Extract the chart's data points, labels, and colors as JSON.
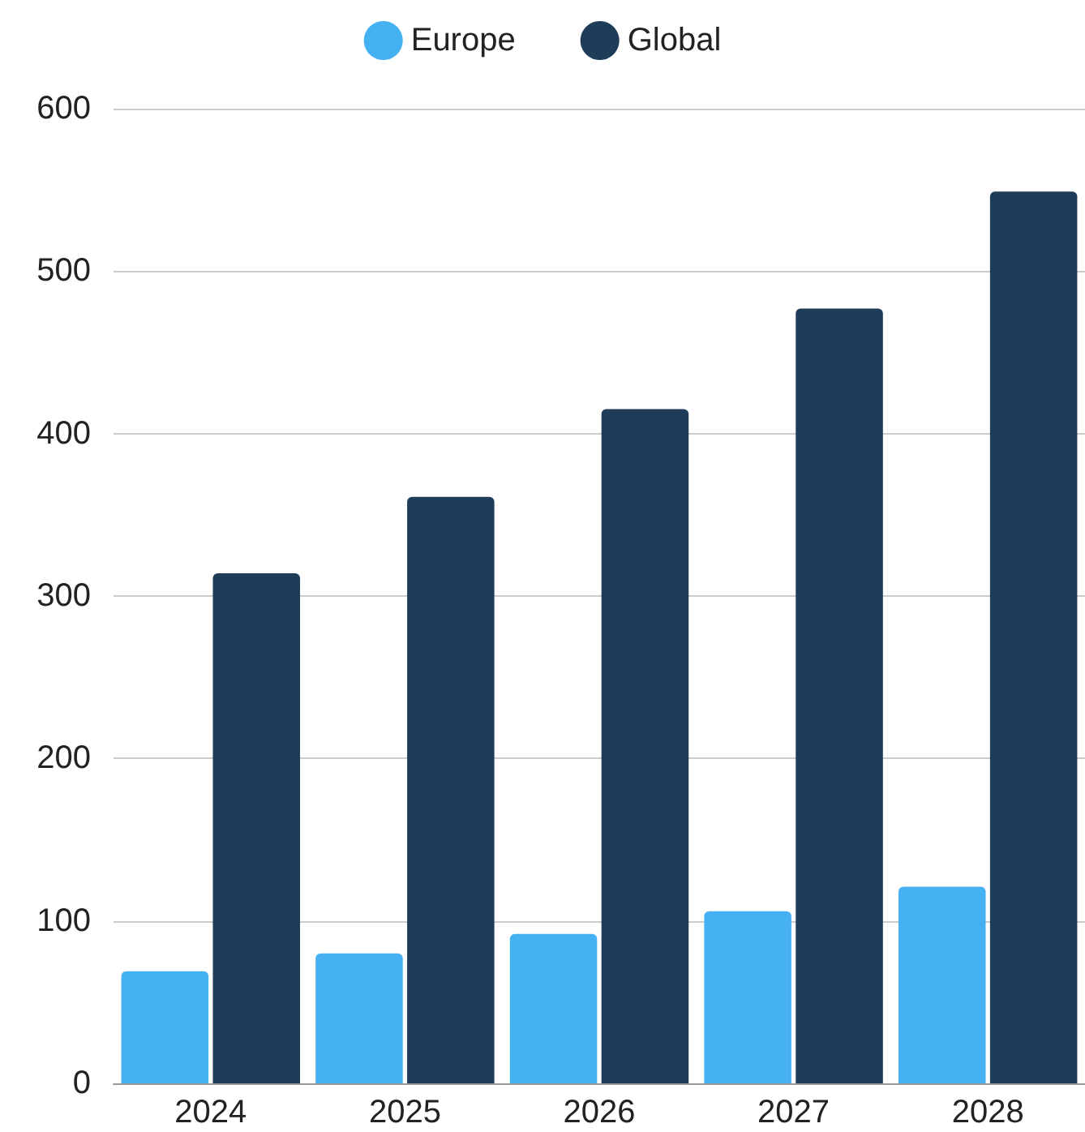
{
  "chart_data": {
    "type": "bar",
    "categories": [
      "2024",
      "2025",
      "2026",
      "2027",
      "2028"
    ],
    "series": [
      {
        "name": "Europe",
        "color": "#46b1f2",
        "values": [
          69,
          80,
          92,
          106,
          121
        ]
      },
      {
        "name": "Global",
        "color": "#1f3c59",
        "values": [
          314,
          361,
          415,
          477,
          549
        ]
      }
    ],
    "ylim": [
      0,
      600
    ],
    "yticks": [
      0,
      100,
      200,
      300,
      400,
      500,
      600
    ],
    "grid": "y",
    "legend": "top"
  }
}
